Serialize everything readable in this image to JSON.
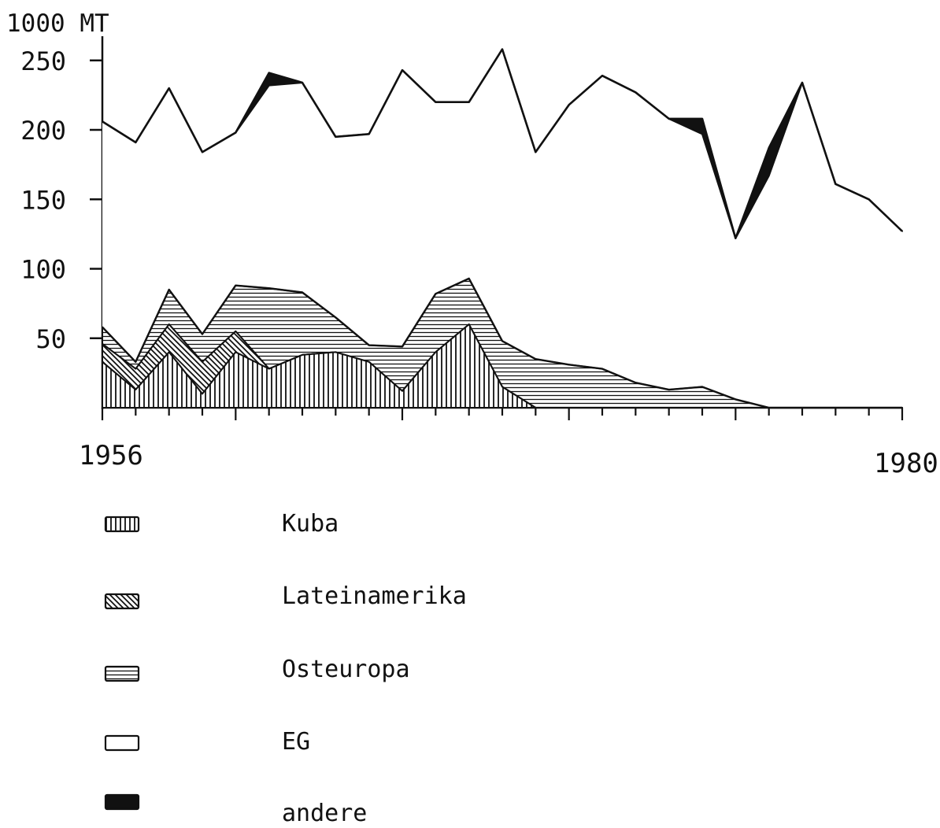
{
  "chart_data": {
    "type": "area",
    "ylabel": "1000 MT",
    "x_start_label": "1956",
    "x_end_label": "1980",
    "xlim": [
      1956,
      1980
    ],
    "ylim": [
      0,
      270
    ],
    "yticks": [
      50,
      100,
      150,
      200,
      250
    ],
    "x": [
      1956,
      1957,
      1958,
      1959,
      1960,
      1961,
      1962,
      1963,
      1964,
      1965,
      1966,
      1967,
      1968,
      1969,
      1970,
      1971,
      1972,
      1973,
      1974,
      1975,
      1976,
      1977,
      1978,
      1979,
      1980
    ],
    "total": [
      206,
      191,
      230,
      184,
      198,
      241,
      234,
      195,
      197,
      243,
      220,
      220,
      258,
      184,
      218,
      239,
      227,
      208,
      208,
      122,
      187,
      234,
      161,
      150,
      127
    ],
    "stack_tops": {
      "kuba": [
        33,
        13,
        40,
        10,
        40,
        28,
        38,
        40,
        33,
        12,
        40,
        60,
        15,
        0,
        0,
        0,
        0,
        0,
        0,
        0,
        0,
        0,
        0,
        0,
        0
      ],
      "lateinamerika": [
        46,
        28,
        60,
        33,
        55,
        28,
        38,
        40,
        33,
        12,
        40,
        60,
        15,
        0,
        0,
        0,
        0,
        0,
        0,
        0,
        0,
        0,
        0,
        0,
        0
      ],
      "osteuropa": [
        58,
        33,
        85,
        53,
        88,
        86,
        83,
        65,
        45,
        44,
        82,
        93,
        48,
        35,
        31,
        28,
        18,
        13,
        15,
        6,
        0,
        0,
        0,
        0,
        0
      ],
      "eg": [
        206,
        191,
        230,
        184,
        198,
        232,
        234,
        195,
        197,
        243,
        220,
        220,
        258,
        184,
        218,
        239,
        227,
        208,
        197,
        122,
        167,
        234,
        161,
        150,
        127
      ]
    },
    "total_note_anchor": "andere",
    "legend": [
      {
        "key": "kuba",
        "label": "Kuba",
        "pattern": "vertical-hatch"
      },
      {
        "key": "lateinamerika",
        "label": "Lateinamerika",
        "pattern": "diagonal-hatch"
      },
      {
        "key": "osteuropa",
        "label": "Osteuropa",
        "pattern": "horizontal-hatch"
      },
      {
        "key": "eg",
        "label": "EG",
        "pattern": "blank"
      },
      {
        "key": "andere",
        "label": "andere",
        "pattern": "solid-black"
      }
    ],
    "legend_placement": "below",
    "grid": false
  }
}
